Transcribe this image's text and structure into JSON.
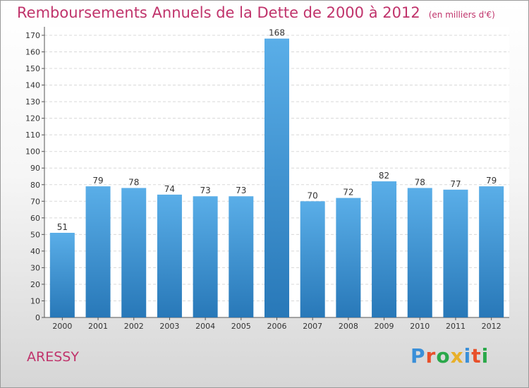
{
  "chart_data": {
    "type": "bar",
    "title": "Remboursements Annuels de la Dette de 2000 à 2012",
    "unit_label": "(en milliers d'€)",
    "categories": [
      "2000",
      "2001",
      "2002",
      "2003",
      "2004",
      "2005",
      "2006",
      "2007",
      "2008",
      "2009",
      "2010",
      "2011",
      "2012"
    ],
    "values": [
      51,
      79,
      78,
      74,
      73,
      73,
      168,
      70,
      72,
      82,
      78,
      77,
      79
    ],
    "ylim": [
      0,
      170
    ],
    "yticks": [
      0,
      10,
      20,
      30,
      40,
      50,
      60,
      70,
      80,
      90,
      100,
      110,
      120,
      130,
      140,
      150,
      160,
      170
    ],
    "grid": true,
    "bar_color_top": "#5aaee8",
    "bar_color_bottom": "#2878b8"
  },
  "footer": {
    "place": "ARESSY",
    "logo": "Proxiti"
  },
  "colors": {
    "title": "#c0336b",
    "logo_letters": [
      "#3a8fd8",
      "#e8502a",
      "#2aa84a",
      "#e8b02a",
      "#3a8fd8",
      "#e8502a",
      "#2aa84a"
    ]
  }
}
